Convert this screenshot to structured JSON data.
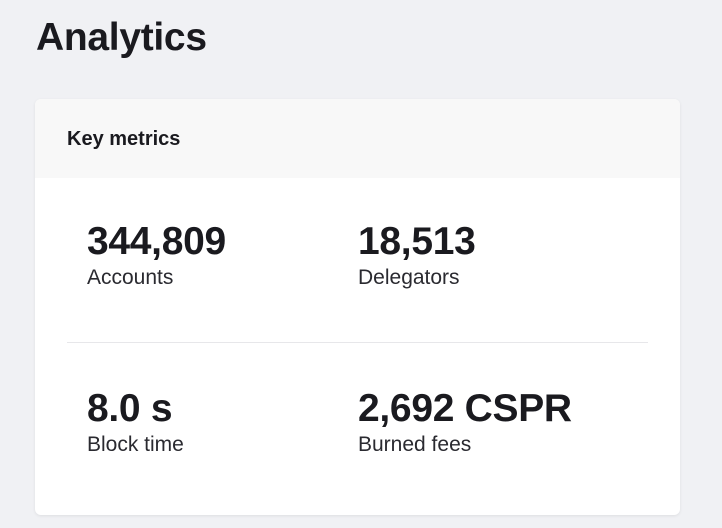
{
  "page": {
    "title": "Analytics"
  },
  "key_metrics": {
    "title": "Key metrics",
    "items": [
      {
        "value": "344,809",
        "label": "Accounts"
      },
      {
        "value": "18,513",
        "label": "Delegators"
      },
      {
        "value": "8.0 s",
        "label": "Block time"
      },
      {
        "value": "2,692 CSPR",
        "label": "Burned fees"
      }
    ]
  }
}
